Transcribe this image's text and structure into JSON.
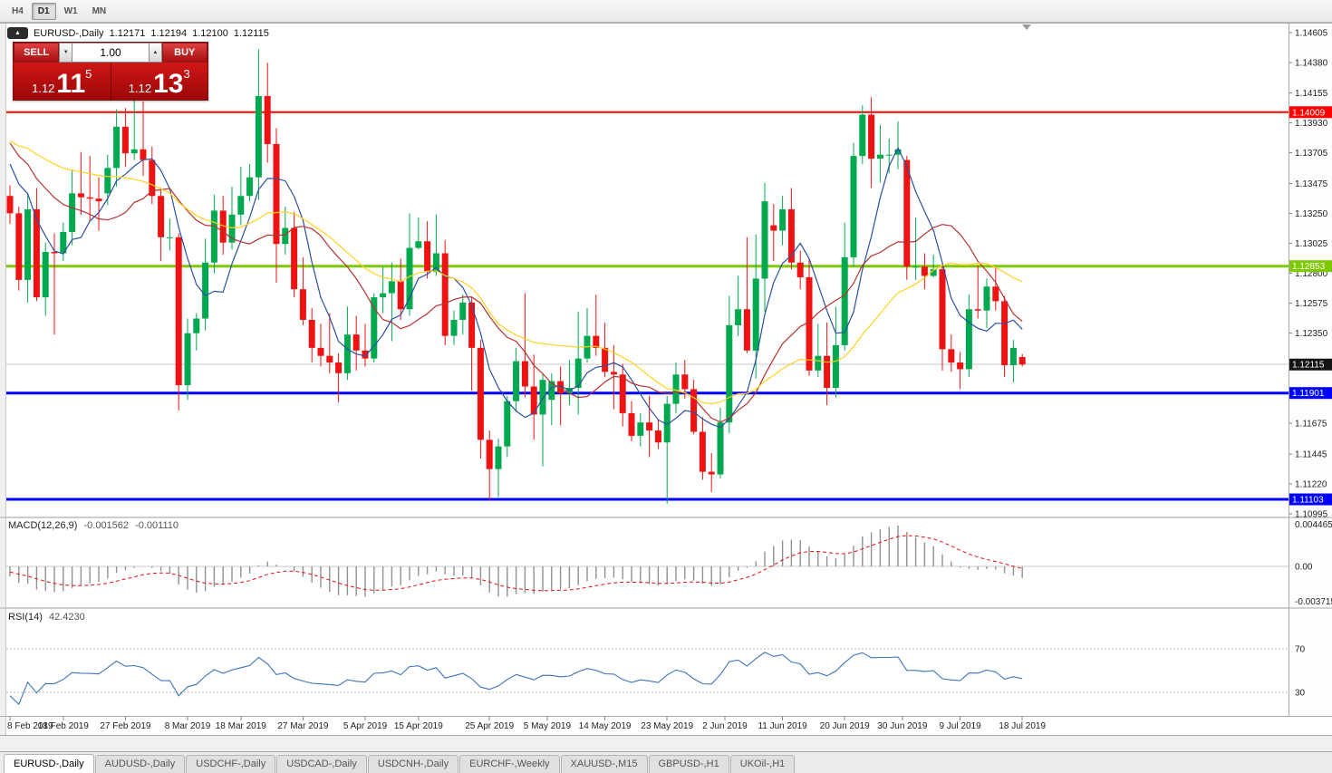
{
  "toolbar": {
    "timeframes": [
      {
        "label": "H4",
        "active": false
      },
      {
        "label": "D1",
        "active": true
      },
      {
        "label": "W1",
        "active": false
      },
      {
        "label": "MN",
        "active": false
      }
    ]
  },
  "chart": {
    "header": {
      "symbol": "EURUSD-,Daily",
      "open": "1.12171",
      "high": "1.12194",
      "low": "1.12100",
      "close": "1.12115"
    }
  },
  "trade_panel": {
    "sell_label": "SELL",
    "buy_label": "BUY",
    "volume": "1.00",
    "sell_price": {
      "prefix": "1.12",
      "pips": "11",
      "frac": "5"
    },
    "buy_price": {
      "prefix": "1.12",
      "pips": "13",
      "frac": "3"
    }
  },
  "icons": {
    "collapse_triangle": "▲",
    "volume_down": "▼",
    "volume_up": "▲"
  },
  "colors": {
    "up": "#00a94f",
    "down": "#ef1212",
    "ma_fast": "#2d4fa1",
    "ma_mid": "#b43232",
    "ma_slow": "#ffd21f",
    "macd_hist": "#909090",
    "macd_signal": "#e01010",
    "rsi": "#3d74b8",
    "bid_line": "#c8c8c8",
    "bid_label_bg": "#141414"
  },
  "chart_data": {
    "type": "candlestick",
    "symbol": "EURUSD-",
    "period": "Daily",
    "price_axis_ticks": [
      "1.14605",
      "1.14380",
      "1.14155",
      "1.13930",
      "1.13705",
      "1.13475",
      "1.13250",
      "1.13025",
      "1.12800",
      "1.12575",
      "1.12350",
      "1.11675",
      "1.11445",
      "1.11220",
      "1.10995"
    ],
    "hlines": [
      {
        "price": 1.14009,
        "label": "1.14009",
        "color": "#ff0000",
        "width": 2
      },
      {
        "price": 1.12853,
        "label": "1.12853",
        "color": "#7ec800",
        "width": 3
      },
      {
        "price": 1.11901,
        "label": "1.11901",
        "color": "#0000ff",
        "width": 3
      },
      {
        "price": 1.11103,
        "label": "1.11103",
        "color": "#0000ff",
        "width": 3
      }
    ],
    "current_price": {
      "value": 1.12115,
      "label": "1.12115"
    },
    "x_labels": [
      {
        "t": "8 Feb 2019",
        "i": 0
      },
      {
        "t": "18 Feb 2019",
        "i": 6
      },
      {
        "t": "27 Feb 2019",
        "i": 13
      },
      {
        "t": "8 Mar 2019",
        "i": 20
      },
      {
        "t": "18 Mar 2019",
        "i": 26
      },
      {
        "t": "27 Mar 2019",
        "i": 33
      },
      {
        "t": "5 Apr 2019",
        "i": 40
      },
      {
        "t": "15 Apr 2019",
        "i": 46
      },
      {
        "t": "25 Apr 2019",
        "i": 54
      },
      {
        "t": "5 May 2019",
        "i": 60.5
      },
      {
        "t": "14 May 2019",
        "i": 67
      },
      {
        "t": "23 May 2019",
        "i": 74
      },
      {
        "t": "2 Jun 2019",
        "i": 80.5
      },
      {
        "t": "11 Jun 2019",
        "i": 87
      },
      {
        "t": "20 Jun 2019",
        "i": 94
      },
      {
        "t": "30 Jun 2019",
        "i": 100.5
      },
      {
        "t": "9 Jul 2019",
        "i": 107
      },
      {
        "t": "18 Jul 2019",
        "i": 114
      }
    ],
    "moving_averages": [
      {
        "period": 6,
        "color": "#2d4fa1"
      },
      {
        "period": 13,
        "color": "#b43232"
      },
      {
        "period": 26,
        "color": "#ffd21f"
      }
    ],
    "warmup_closes": [
      1.1415,
      1.1422,
      1.1415,
      1.1405,
      1.1398,
      1.1392,
      1.1388,
      1.1395,
      1.1402,
      1.1408,
      1.14,
      1.1392,
      1.1385,
      1.1378,
      1.1372,
      1.1368,
      1.1375,
      1.1382,
      1.1388,
      1.1395,
      1.1388,
      1.138,
      1.1372,
      1.1365,
      1.1372,
      1.138,
      1.1388,
      1.1395,
      1.1402,
      1.1408,
      1.1402,
      1.1392,
      1.1385,
      1.1378,
      1.1372,
      1.1365,
      1.1372,
      1.1378,
      1.137,
      1.1362
    ],
    "candles": [
      [
        1.1338,
        1.1346,
        1.1317,
        1.1325
      ],
      [
        1.1325,
        1.133,
        1.1267,
        1.1275
      ],
      [
        1.1275,
        1.1339,
        1.1258,
        1.1328
      ],
      [
        1.1328,
        1.1344,
        1.1259,
        1.1262
      ],
      [
        1.1262,
        1.1303,
        1.1248,
        1.1296
      ],
      [
        1.1296,
        1.131,
        1.1234,
        1.1295
      ],
      [
        1.1295,
        1.1318,
        1.1289,
        1.1311
      ],
      [
        1.1311,
        1.1358,
        1.1301,
        1.134
      ],
      [
        1.134,
        1.1371,
        1.1324,
        1.1337
      ],
      [
        1.1337,
        1.1368,
        1.1319,
        1.1336
      ],
      [
        1.1336,
        1.1352,
        1.1312,
        1.1334
      ],
      [
        1.134,
        1.1369,
        1.1331,
        1.1359
      ],
      [
        1.1359,
        1.1403,
        1.1345,
        1.139
      ],
      [
        1.139,
        1.1404,
        1.136,
        1.137
      ],
      [
        1.137,
        1.1412,
        1.1365,
        1.1373
      ],
      [
        1.1373,
        1.1409,
        1.1353,
        1.1365
      ],
      [
        1.1365,
        1.1375,
        1.1332,
        1.1338
      ],
      [
        1.1338,
        1.1344,
        1.1289,
        1.1307
      ],
      [
        1.1307,
        1.1321,
        1.1297,
        1.1307
      ],
      [
        1.1307,
        1.131,
        1.1177,
        1.1196
      ],
      [
        1.1196,
        1.1246,
        1.1185,
        1.1235
      ],
      [
        1.1235,
        1.125,
        1.1222,
        1.1246
      ],
      [
        1.1246,
        1.1306,
        1.1237,
        1.1288
      ],
      [
        1.1288,
        1.1339,
        1.128,
        1.1327
      ],
      [
        1.1327,
        1.1338,
        1.1294,
        1.1303
      ],
      [
        1.1303,
        1.1345,
        1.1298,
        1.1324
      ],
      [
        1.1324,
        1.136,
        1.1316,
        1.1338
      ],
      [
        1.1338,
        1.1362,
        1.1334,
        1.1352
      ],
      [
        1.1352,
        1.1448,
        1.1335,
        1.1413
      ],
      [
        1.1413,
        1.1438,
        1.1363,
        1.1377
      ],
      [
        1.1377,
        1.1389,
        1.1273,
        1.1302
      ],
      [
        1.1302,
        1.133,
        1.1294,
        1.1314
      ],
      [
        1.1314,
        1.1326,
        1.1262,
        1.1268
      ],
      [
        1.1268,
        1.1292,
        1.1241,
        1.1245
      ],
      [
        1.1245,
        1.1254,
        1.1213,
        1.1224
      ],
      [
        1.1224,
        1.1242,
        1.121,
        1.1218
      ],
      [
        1.1218,
        1.125,
        1.1205,
        1.1213
      ],
      [
        1.1213,
        1.122,
        1.1183,
        1.1205
      ],
      [
        1.1205,
        1.1255,
        1.12,
        1.1234
      ],
      [
        1.1234,
        1.1248,
        1.1207,
        1.1222
      ],
      [
        1.1222,
        1.1242,
        1.121,
        1.1216
      ],
      [
        1.1216,
        1.1265,
        1.1213,
        1.1262
      ],
      [
        1.1262,
        1.1285,
        1.125,
        1.1265
      ],
      [
        1.1265,
        1.1288,
        1.1229,
        1.1274
      ],
      [
        1.1274,
        1.1291,
        1.1245,
        1.1253
      ],
      [
        1.1253,
        1.1325,
        1.1248,
        1.1299
      ],
      [
        1.1299,
        1.1322,
        1.1298,
        1.1304
      ],
      [
        1.1304,
        1.1319,
        1.1276,
        1.1281
      ],
      [
        1.1281,
        1.1324,
        1.1278,
        1.1295
      ],
      [
        1.1295,
        1.1305,
        1.1226,
        1.1233
      ],
      [
        1.1233,
        1.1252,
        1.1226,
        1.1245
      ],
      [
        1.1245,
        1.1264,
        1.1234,
        1.1258
      ],
      [
        1.1258,
        1.1262,
        1.1192,
        1.1224
      ],
      [
        1.1224,
        1.123,
        1.1141,
        1.1155
      ],
      [
        1.1155,
        1.1162,
        1.111,
        1.1133
      ],
      [
        1.1133,
        1.1156,
        1.1112,
        1.115
      ],
      [
        1.115,
        1.1188,
        1.1142,
        1.1184
      ],
      [
        1.1184,
        1.1224,
        1.1176,
        1.1214
      ],
      [
        1.1214,
        1.1265,
        1.1187,
        1.1195
      ],
      [
        1.1195,
        1.1219,
        1.1155,
        1.1174
      ],
      [
        1.1174,
        1.1205,
        1.1135,
        1.12
      ],
      [
        1.1185,
        1.1205,
        1.1166,
        1.1199
      ],
      [
        1.1199,
        1.121,
        1.1166,
        1.119
      ],
      [
        1.119,
        1.1215,
        1.1181,
        1.1194
      ],
      [
        1.1194,
        1.1251,
        1.1174,
        1.1216
      ],
      [
        1.1216,
        1.1254,
        1.1213,
        1.1233
      ],
      [
        1.1233,
        1.1264,
        1.1218,
        1.1224
      ],
      [
        1.1224,
        1.1243,
        1.1202,
        1.1206
      ],
      [
        1.1206,
        1.1226,
        1.1178,
        1.1204
      ],
      [
        1.1204,
        1.1212,
        1.1165,
        1.1175
      ],
      [
        1.1175,
        1.1184,
        1.1154,
        1.1158
      ],
      [
        1.1158,
        1.1175,
        1.115,
        1.1168
      ],
      [
        1.1168,
        1.1188,
        1.1142,
        1.1162
      ],
      [
        1.1162,
        1.117,
        1.1148,
        1.1153
      ],
      [
        1.1153,
        1.1188,
        1.1107,
        1.1182
      ],
      [
        1.1182,
        1.1213,
        1.1175,
        1.1204
      ],
      [
        1.1204,
        1.1215,
        1.1186,
        1.1193
      ],
      [
        1.1193,
        1.12,
        1.1159,
        1.1161
      ],
      [
        1.1161,
        1.1172,
        1.1125,
        1.1131
      ],
      [
        1.1131,
        1.1145,
        1.1116,
        1.1129
      ],
      [
        1.1129,
        1.1179,
        1.1126,
        1.1168
      ],
      [
        1.1168,
        1.1263,
        1.116,
        1.1241
      ],
      [
        1.1241,
        1.1278,
        1.1233,
        1.1253
      ],
      [
        1.1253,
        1.1307,
        1.122,
        1.1222
      ],
      [
        1.1222,
        1.1309,
        1.1201,
        1.1276
      ],
      [
        1.1276,
        1.1348,
        1.1251,
        1.1334
      ],
      [
        1.1316,
        1.1332,
        1.1289,
        1.1312
      ],
      [
        1.1312,
        1.1338,
        1.1301,
        1.1328
      ],
      [
        1.1328,
        1.1344,
        1.1283,
        1.1288
      ],
      [
        1.1288,
        1.1297,
        1.1268,
        1.1277
      ],
      [
        1.1277,
        1.129,
        1.1203,
        1.1207
      ],
      [
        1.1207,
        1.1242,
        1.1202,
        1.1218
      ],
      [
        1.1218,
        1.1243,
        1.1181,
        1.1194
      ],
      [
        1.1194,
        1.1255,
        1.1187,
        1.1226
      ],
      [
        1.1226,
        1.1318,
        1.1222,
        1.1292
      ],
      [
        1.1292,
        1.1378,
        1.1285,
        1.1368
      ],
      [
        1.1368,
        1.1406,
        1.1362,
        1.1399
      ],
      [
        1.1399,
        1.1412,
        1.1344,
        1.1366
      ],
      [
        1.1366,
        1.1391,
        1.1348,
        1.1369
      ],
      [
        1.1369,
        1.1381,
        1.1355,
        1.1369
      ],
      [
        1.1369,
        1.1394,
        1.1358,
        1.1373
      ],
      [
        1.1365,
        1.1368,
        1.1275,
        1.1285
      ],
      [
        1.1285,
        1.1322,
        1.1275,
        1.1285
      ],
      [
        1.1285,
        1.1295,
        1.1268,
        1.1278
      ],
      [
        1.1278,
        1.1294,
        1.1277,
        1.1283
      ],
      [
        1.1283,
        1.1288,
        1.1207,
        1.1223
      ],
      [
        1.1223,
        1.1234,
        1.1206,
        1.1213
      ],
      [
        1.1213,
        1.1221,
        1.1193,
        1.1208
      ],
      [
        1.1208,
        1.1264,
        1.1202,
        1.1253
      ],
      [
        1.1253,
        1.1286,
        1.1246,
        1.1252
      ],
      [
        1.1252,
        1.1276,
        1.1239,
        1.127
      ],
      [
        1.127,
        1.1285,
        1.1252,
        1.1259
      ],
      [
        1.1259,
        1.1263,
        1.1202,
        1.1211
      ],
      [
        1.1211,
        1.123,
        1.1198,
        1.1224
      ],
      [
        1.12171,
        1.12194,
        1.121,
        1.12115
      ]
    ],
    "macd": {
      "label": "MACD(12,26,9)",
      "value_main": "-0.001562",
      "value_signal": "-0.001110",
      "fast": 12,
      "slow": 26,
      "signal": 9,
      "axis": [
        "0.004465",
        "0.00",
        "-0.003715"
      ]
    },
    "rsi": {
      "label": "RSI(14)",
      "value_text": "42.4230",
      "period": 14,
      "levels": [
        70,
        30
      ]
    }
  },
  "tabs": [
    {
      "label": "EURUSD-,Daily",
      "active": true
    },
    {
      "label": "AUDUSD-,Daily",
      "active": false
    },
    {
      "label": "USDCHF-,Daily",
      "active": false
    },
    {
      "label": "USDCAD-,Daily",
      "active": false
    },
    {
      "label": "USDCNH-,Daily",
      "active": false
    },
    {
      "label": "EURCHF-,Weekly",
      "active": false
    },
    {
      "label": "XAUUSD-,M15",
      "active": false
    },
    {
      "label": "GBPUSD-,H1",
      "active": false
    },
    {
      "label": "UKOil-,H1",
      "active": false
    }
  ]
}
